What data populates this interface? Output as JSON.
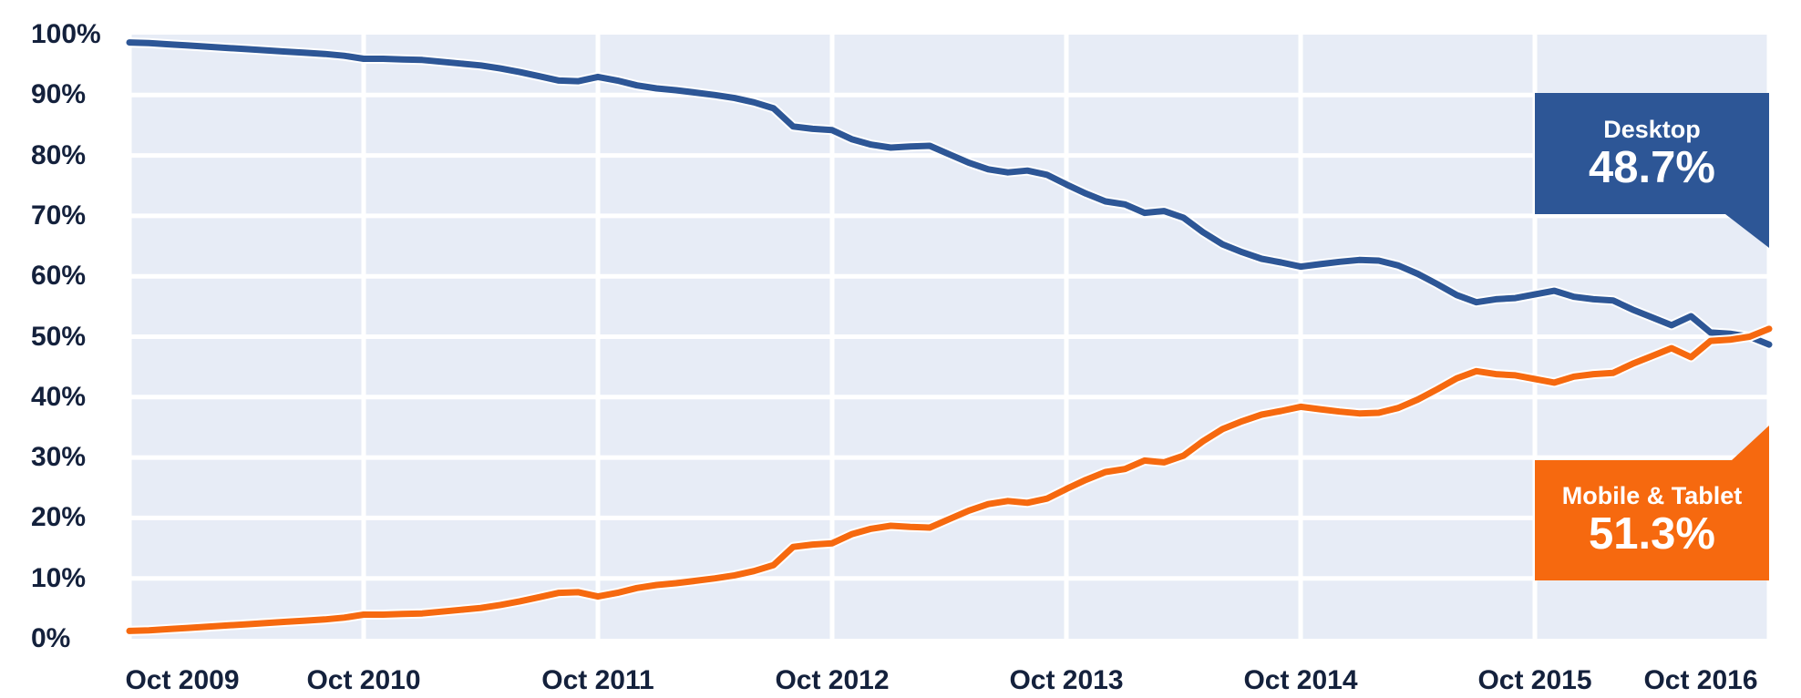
{
  "chart_data": {
    "type": "line",
    "x_tick_labels": [
      "Oct 2009",
      "Oct 2010",
      "Oct 2011",
      "Oct 2012",
      "Oct 2013",
      "Oct 2014",
      "Oct 2015",
      "Oct 2016"
    ],
    "y_tick_labels": [
      "100%",
      "90%",
      "80%",
      "70%",
      "60%",
      "50%",
      "40%",
      "30%",
      "20%",
      "10%",
      "0%"
    ],
    "ylim": [
      0,
      100
    ],
    "x_unit": "month",
    "x_range_months": 85,
    "grid": true,
    "legend_position": "callout-boxes-right",
    "series": [
      {
        "name": "Desktop",
        "color": "#2d5696",
        "values": [
          98.7,
          98.6,
          98.4,
          98.2,
          98.0,
          97.8,
          97.6,
          97.4,
          97.2,
          97.0,
          96.8,
          96.5,
          96.0,
          96.0,
          95.9,
          95.8,
          95.5,
          95.2,
          94.9,
          94.4,
          93.8,
          93.1,
          92.4,
          92.3,
          93.0,
          92.4,
          91.6,
          91.1,
          90.8,
          90.4,
          90.0,
          89.5,
          88.8,
          87.8,
          84.8,
          84.4,
          84.2,
          82.7,
          81.8,
          81.3,
          81.5,
          81.6,
          80.2,
          78.8,
          77.7,
          77.2,
          77.5,
          76.8,
          75.2,
          73.7,
          72.4,
          71.9,
          70.5,
          70.8,
          69.7,
          67.3,
          65.3,
          64.0,
          62.9,
          62.3,
          61.6,
          62.0,
          62.4,
          62.7,
          62.6,
          61.8,
          60.4,
          58.7,
          56.9,
          55.7,
          56.2,
          56.4,
          57.0,
          57.6,
          56.6,
          56.2,
          56.0,
          54.5,
          53.2,
          51.9,
          53.4,
          50.7,
          50.5,
          50.0,
          48.7
        ]
      },
      {
        "name": "Mobile & Tablet",
        "color": "#f6690f",
        "values": [
          1.3,
          1.4,
          1.6,
          1.8,
          2.0,
          2.2,
          2.4,
          2.6,
          2.8,
          3.0,
          3.2,
          3.5,
          4.0,
          4.0,
          4.1,
          4.2,
          4.5,
          4.8,
          5.1,
          5.6,
          6.2,
          6.9,
          7.6,
          7.7,
          7.0,
          7.6,
          8.4,
          8.9,
          9.2,
          9.6,
          10.0,
          10.5,
          11.2,
          12.2,
          15.2,
          15.6,
          15.8,
          17.3,
          18.2,
          18.7,
          18.5,
          18.4,
          19.8,
          21.2,
          22.3,
          22.8,
          22.5,
          23.2,
          24.8,
          26.3,
          27.6,
          28.1,
          29.5,
          29.2,
          30.3,
          32.7,
          34.7,
          36.0,
          37.1,
          37.7,
          38.4,
          38.0,
          37.6,
          37.3,
          37.4,
          38.2,
          39.6,
          41.3,
          43.1,
          44.3,
          43.8,
          43.6,
          43.0,
          42.4,
          43.4,
          43.8,
          44.0,
          45.5,
          46.8,
          48.1,
          46.6,
          49.3,
          49.5,
          50.0,
          51.3
        ]
      }
    ]
  },
  "callouts": {
    "desktop": {
      "label": "Desktop",
      "value": "48.7%",
      "bg": "#2d5696"
    },
    "mobile": {
      "label": "Mobile & Tablet",
      "value": "51.3%",
      "bg": "#f6690f"
    }
  },
  "style": {
    "plot_background": "#e7ecf6",
    "gridline_color": "#ffffff",
    "tick_text_color": "#14213c",
    "line_halo_color": "#ffffff"
  }
}
